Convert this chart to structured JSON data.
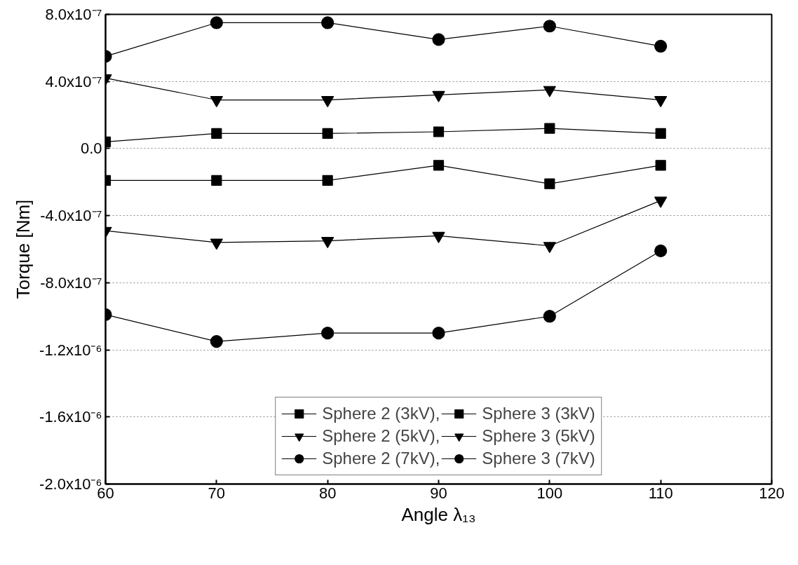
{
  "chart_data": {
    "type": "line",
    "xlabel": "Angle λ₁₃",
    "ylabel": "Torque [Nm]",
    "x": [
      60,
      70,
      80,
      90,
      100,
      110
    ],
    "series": [
      {
        "name": "Sphere 2 (3kV),",
        "color": "#000000",
        "marker": "square",
        "values": [
          4e-08,
          9e-08,
          9e-08,
          1e-07,
          1.2e-07,
          9e-08
        ]
      },
      {
        "name": "Sphere 2 (5kV),",
        "color": "#000000",
        "marker": "triangle",
        "values": [
          4.2e-07,
          2.9e-07,
          2.9e-07,
          3.2e-07,
          3.5e-07,
          2.9e-07
        ]
      },
      {
        "name": "Sphere 2 (7kV),",
        "color": "#000000",
        "marker": "circle",
        "values": [
          5.5e-07,
          7.5e-07,
          7.5e-07,
          6.5e-07,
          7.3e-07,
          6.1e-07
        ]
      },
      {
        "name": "Sphere 3 (3kV)",
        "color": "#000000",
        "marker": "square",
        "values": [
          -1.9e-07,
          -1.9e-07,
          -1.9e-07,
          -1e-07,
          -2.1e-07,
          -1e-07
        ]
      },
      {
        "name": "Sphere 3 (5kV)",
        "color": "#000000",
        "marker": "triangle",
        "values": [
          -4.9e-07,
          -5.6e-07,
          -5.5e-07,
          -5.2e-07,
          -5.8e-07,
          -3.1e-07
        ]
      },
      {
        "name": "Sphere 3 (7kV)",
        "color": "#000000",
        "marker": "circle",
        "values": [
          -9.9e-07,
          -1.15e-06,
          -1.1e-06,
          -1.1e-06,
          -1e-06,
          -6.1e-07
        ]
      }
    ],
    "xlim": [
      60,
      120
    ],
    "xticks": [
      60,
      70,
      80,
      90,
      100,
      110,
      120
    ],
    "ylim": [
      -2e-06,
      8e-07
    ],
    "yticks": [
      {
        "value": -2e-06,
        "label": "-2.0x10⁻⁶"
      },
      {
        "value": -1.6e-06,
        "label": "-1.6x10⁻⁶"
      },
      {
        "value": -1.2e-06,
        "label": "-1.2x10⁻⁶"
      },
      {
        "value": -8e-07,
        "label": "-8.0x10⁻⁷"
      },
      {
        "value": -4e-07,
        "label": "-4.0x10⁻⁷"
      },
      {
        "value": 0,
        "label": "0.0"
      },
      {
        "value": 4e-07,
        "label": "4.0x10⁻⁷"
      },
      {
        "value": 8e-07,
        "label": "8.0x10⁻⁷"
      }
    ],
    "grid": "y",
    "legend": "bottom",
    "line_style": "solid"
  }
}
